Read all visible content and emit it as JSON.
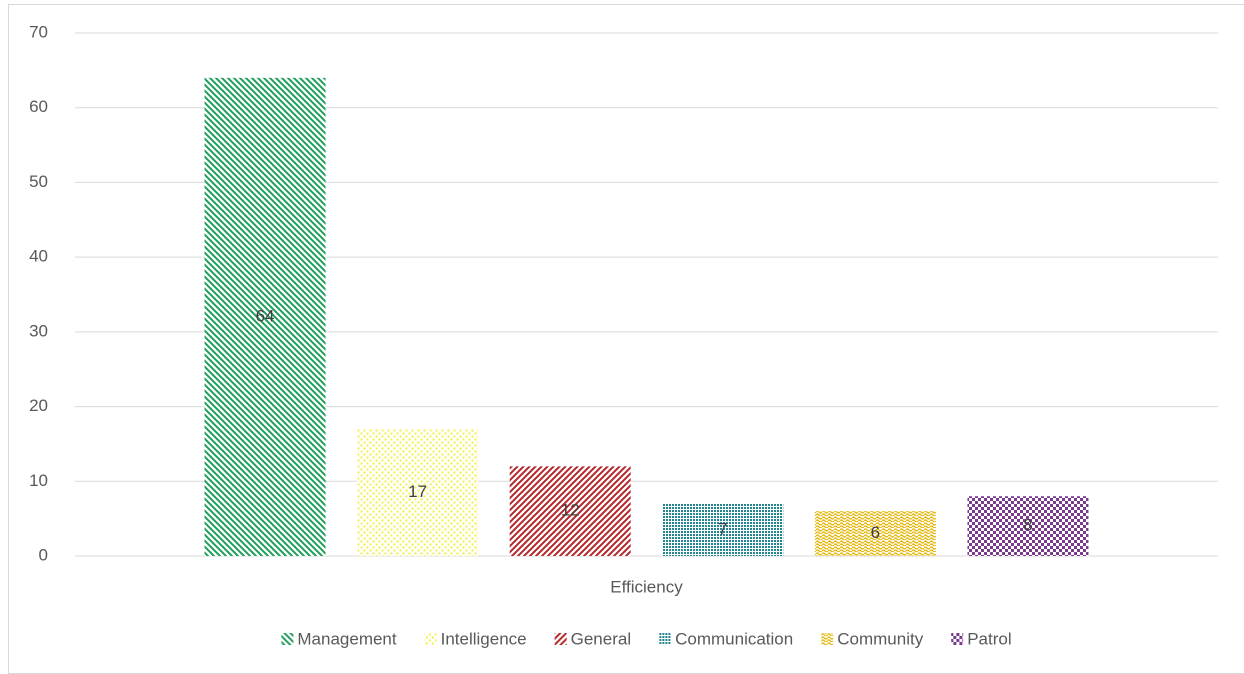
{
  "chart_data": {
    "type": "bar",
    "categories": [
      "Efficiency"
    ],
    "series": [
      {
        "name": "Management",
        "color": "#1e9e5a",
        "values": [
          64
        ]
      },
      {
        "name": "Intelligence",
        "color": "#f2f25a",
        "values": [
          17
        ]
      },
      {
        "name": "General",
        "color": "#b3262a",
        "values": [
          12
        ]
      },
      {
        "name": "Communication",
        "color": "#23868f",
        "values": [
          7
        ]
      },
      {
        "name": "Community",
        "color": "#e3b80f",
        "values": [
          6
        ]
      },
      {
        "name": "Patrol",
        "color": "#7a3b8f",
        "values": [
          8
        ]
      }
    ],
    "ylim": [
      0,
      70
    ],
    "yticks": [
      0,
      10,
      20,
      30,
      40,
      50,
      60,
      70
    ],
    "grid": true,
    "legend": "bottom"
  }
}
